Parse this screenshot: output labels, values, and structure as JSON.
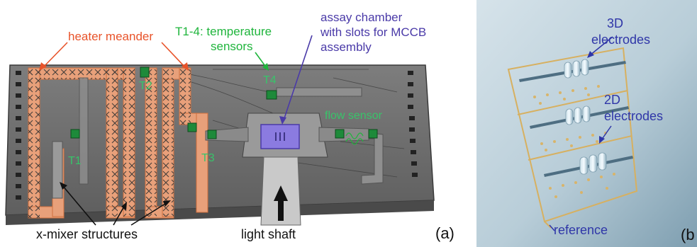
{
  "panel_a": {
    "letter": "(a)",
    "labels": {
      "heater": "heater meander",
      "temp_sensors_line1": "T1-4: temperature",
      "temp_sensors_line2": "sensors",
      "assay_line1": "assay chamber",
      "assay_line2": "with slots for MCCB",
      "assay_line3": "assembly",
      "flow_sensor": "flow sensor",
      "t1": "T1",
      "t2": "T2",
      "t3": "T3",
      "t4": "T4",
      "mixer": "x-mixer structures",
      "light_shaft": "light shaft"
    },
    "colors": {
      "heater": "#e8532a",
      "sensor_text": "#1fb53c",
      "assay_text": "#4a3aa8",
      "chip": "#6e6e6e"
    }
  },
  "panel_b": {
    "letter": "(b",
    "labels": {
      "electrodes_3d_line1": "3D",
      "electrodes_3d_line2": "electrodes",
      "electrodes_2d_line1": "2D",
      "electrodes_2d_line2": "electrodes",
      "reference": "reference"
    },
    "colors": {
      "label_blue": "#2f36a8",
      "gold": "#d7b060"
    }
  }
}
